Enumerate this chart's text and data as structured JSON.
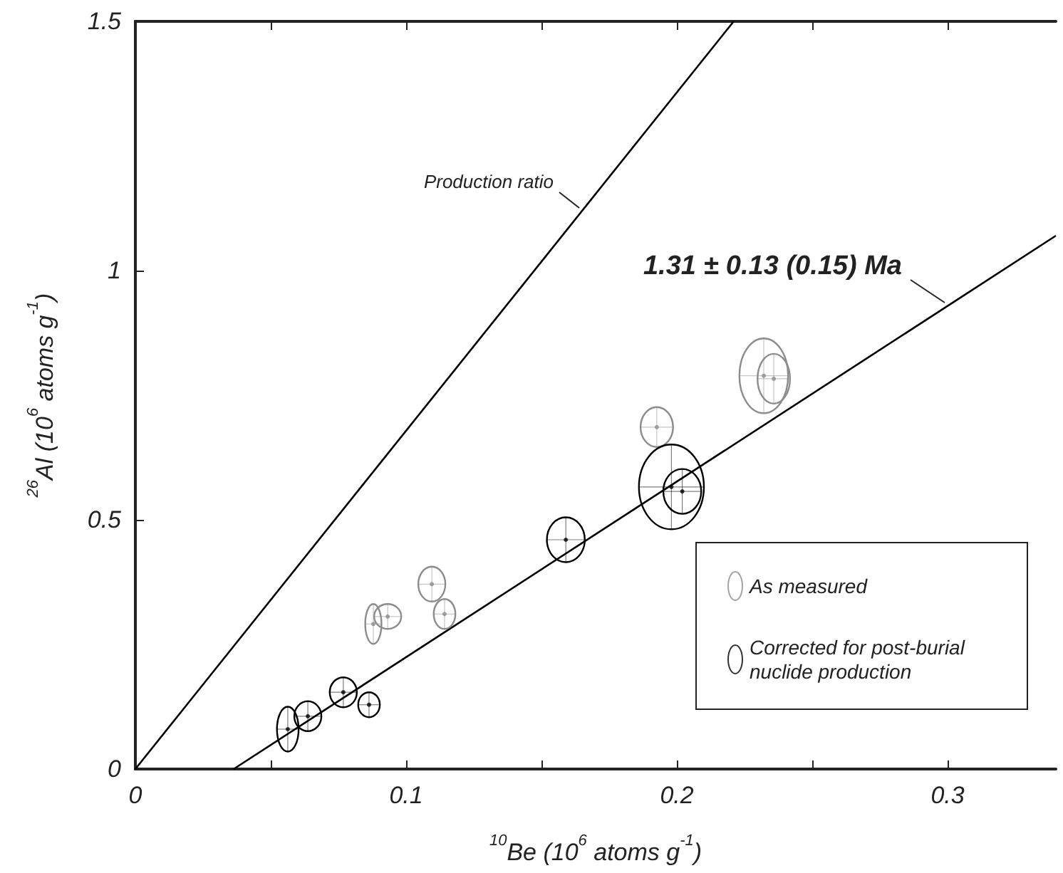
{
  "chart_data": {
    "type": "scatter",
    "xlabel": "$^{10}$Be (10$^{6}$ atoms g$^{-1}$)",
    "ylabel": "$^{26}$Al (10$^{6}$ atoms g$^{-1}$)",
    "xlim": [
      0,
      0.34
    ],
    "ylim": [
      0,
      1.5
    ],
    "xticks": [
      0,
      {
        "value": 0.05,
        "label": null
      },
      0.1,
      {
        "value": 0.15,
        "label": null
      },
      0.2,
      {
        "value": 0.25,
        "label": null
      },
      0.3
    ],
    "yticks": [
      0,
      0.5,
      1,
      1.5
    ],
    "grid": false,
    "legend": "bottom right",
    "marker": "circle",
    "series": [
      {
        "name": "As measured",
        "color": "#8c8c8c",
        "x": [
          0.0879,
          0.0932,
          0.1095,
          0.1142,
          0.1926,
          0.2321,
          0.2358
        ],
        "values": [
          0.291,
          0.306,
          0.371,
          0.311,
          0.686,
          0.789,
          0.783
        ],
        "xerrors": [
          0.003,
          0.005,
          0.005,
          0.004,
          0.006,
          0.009,
          0.006
        ],
        "errors": [
          0.04,
          0.025,
          0.035,
          0.03,
          0.04,
          0.075,
          0.05
        ]
      },
      {
        "name": "Corrected for post-burial nuclide production",
        "color": "#000000",
        "x": [
          0.0563,
          0.0637,
          0.0768,
          0.0863,
          0.159,
          0.198,
          0.202
        ],
        "values": [
          0.08,
          0.106,
          0.154,
          0.129,
          0.46,
          0.566,
          0.557
        ],
        "xerrors": [
          0.004,
          0.005,
          0.005,
          0.004,
          0.007,
          0.012,
          0.007
        ],
        "errors": [
          0.045,
          0.03,
          0.03,
          0.025,
          0.045,
          0.085,
          0.045
        ]
      },
      {
        "type": "line",
        "color": "#000000",
        "marker": "none",
        "x": [
          0,
          0.221
        ],
        "values": [
          0,
          1.5
        ]
      },
      {
        "type": "line",
        "color": "#000000",
        "marker": "none",
        "x": [
          0.0363,
          0.34
        ],
        "values": [
          0,
          1.07
        ]
      }
    ],
    "annotations": [
      {
        "text": "Production ratio",
        "x": 0.165,
        "y": 1.12
      },
      {
        "text": "**1.31 ± 0.13 (0.15) Ma**",
        "x": 0.3,
        "y": 0.93
      }
    ]
  }
}
